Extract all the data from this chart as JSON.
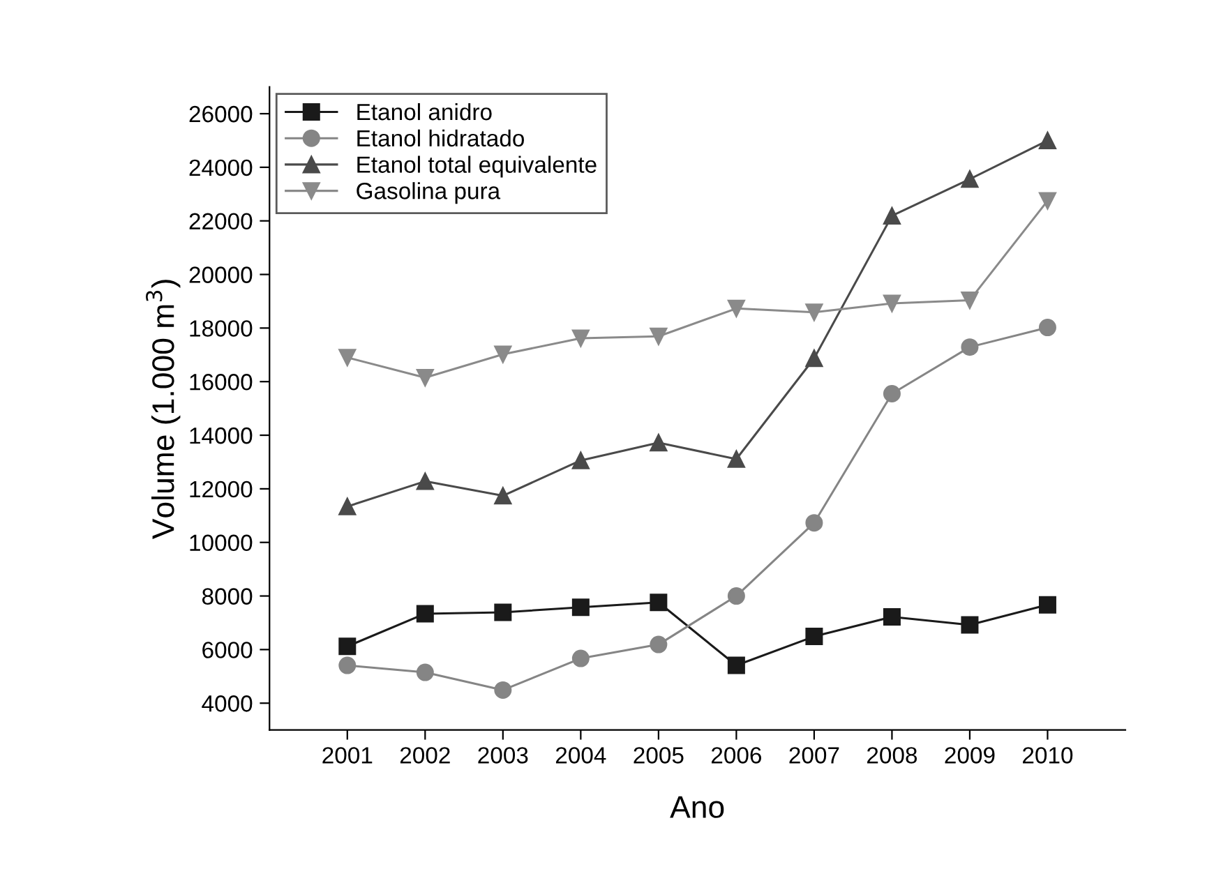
{
  "chart_data": {
    "type": "line",
    "xlabel": "Ano",
    "ylabel": "Volume (1.000 m$^{3}$)",
    "x": [
      2001,
      2002,
      2003,
      2004,
      2005,
      2006,
      2007,
      2008,
      2009,
      2010
    ],
    "series": [
      {
        "name": "Etanol anidro",
        "color": "#1a1a1a",
        "marker": "square",
        "values": [
          6120,
          7340,
          7390,
          7580,
          7760,
          5410,
          6490,
          7220,
          6920,
          7670
        ]
      },
      {
        "name": "Etanol hidratado",
        "color": "#858585",
        "marker": "circle",
        "values": [
          5410,
          5150,
          4490,
          5670,
          6190,
          8000,
          10730,
          15550,
          17290,
          18020
        ]
      },
      {
        "name": "Etanol total equivalente",
        "color": "#4a4a4a",
        "marker": "triangle",
        "values": [
          11340,
          12280,
          11740,
          13060,
          13720,
          13110,
          16870,
          22190,
          23560,
          25000
        ]
      },
      {
        "name": "Gasolina pura",
        "color": "#8a8a8a",
        "marker": "triangle_down",
        "values": [
          16900,
          16150,
          17020,
          17620,
          17690,
          18730,
          18590,
          18920,
          19040,
          22750
        ]
      }
    ],
    "xlim": [
      2000,
      2011
    ],
    "xticks": [
      2001,
      2002,
      2003,
      2004,
      2005,
      2006,
      2007,
      2008,
      2009,
      2010
    ],
    "ylim": [
      3000,
      27000
    ],
    "yticks": [
      4000,
      6000,
      8000,
      10000,
      12000,
      14000,
      16000,
      18000,
      20000,
      22000,
      24000,
      26000
    ],
    "grid": false,
    "legend": "top left",
    "line_style": "solid"
  }
}
